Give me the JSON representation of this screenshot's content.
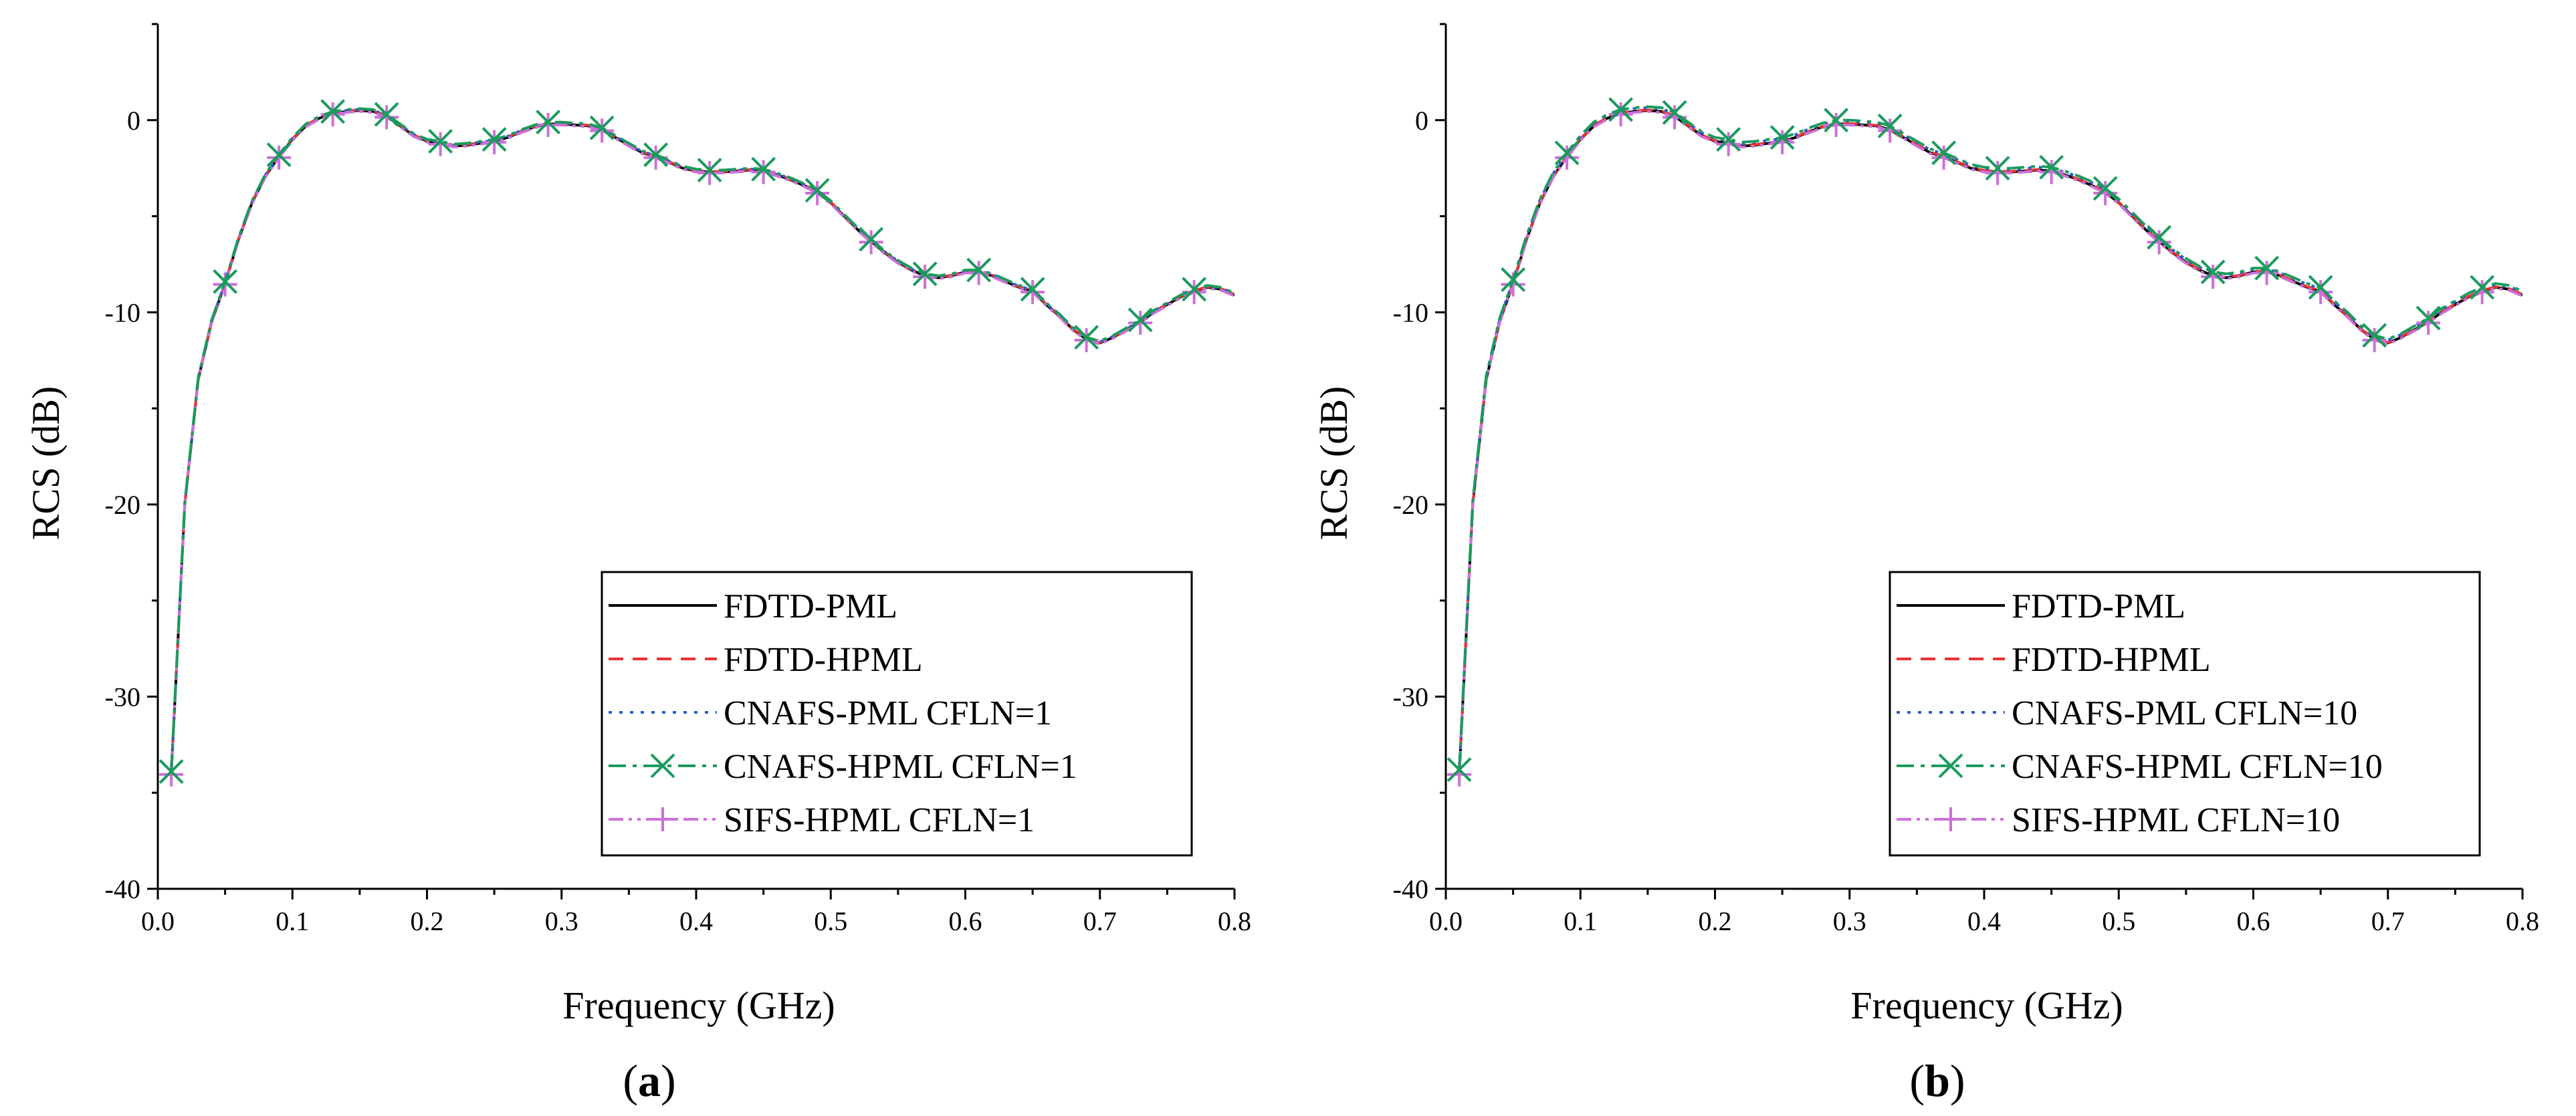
{
  "chart_data": [
    {
      "panel_label": "a",
      "type": "line",
      "xlabel": "Frequency (GHz)",
      "ylabel": "RCS (dB)",
      "xlim": [
        0.0,
        0.8
      ],
      "ylim": [
        -40,
        5
      ],
      "xticks": [
        "0.0",
        "0.1",
        "0.2",
        "0.3",
        "0.4",
        "0.5",
        "0.6",
        "0.7",
        "0.8"
      ],
      "yticks": [
        "0",
        "-10",
        "-20",
        "-30",
        "-40"
      ],
      "legend_position": "bottom-right",
      "series": [
        {
          "name": "FDTD-PML",
          "color": "#000000",
          "dash": "solid",
          "marker": "none",
          "offset": 0,
          "x": [
            0.01,
            0.02,
            0.03,
            0.04,
            0.05,
            0.06,
            0.07,
            0.08,
            0.09,
            0.1,
            0.11,
            0.12,
            0.13,
            0.14,
            0.15,
            0.16,
            0.17,
            0.18,
            0.19,
            0.2,
            0.21,
            0.22,
            0.23,
            0.24,
            0.25,
            0.26,
            0.27,
            0.28,
            0.29,
            0.3,
            0.31,
            0.32,
            0.33,
            0.34,
            0.35,
            0.36,
            0.37,
            0.38,
            0.39,
            0.4,
            0.41,
            0.42,
            0.43,
            0.44,
            0.45,
            0.46,
            0.47,
            0.48,
            0.49,
            0.5,
            0.51,
            0.52,
            0.53,
            0.54,
            0.55,
            0.56,
            0.57,
            0.58,
            0.59,
            0.6,
            0.61,
            0.62,
            0.63,
            0.64,
            0.65,
            0.66,
            0.67,
            0.68,
            0.69,
            0.7,
            0.71,
            0.72,
            0.73,
            0.74,
            0.75,
            0.76,
            0.77,
            0.78,
            0.79,
            0.8
          ],
          "y": [
            -34.0,
            -20.0,
            -13.5,
            -10.5,
            -8.5,
            -6.2,
            -4.3,
            -2.9,
            -1.9,
            -1.0,
            -0.3,
            0.1,
            0.35,
            0.45,
            0.5,
            0.45,
            0.2,
            -0.3,
            -0.8,
            -1.1,
            -1.2,
            -1.35,
            -1.3,
            -1.2,
            -1.1,
            -0.9,
            -0.6,
            -0.35,
            -0.2,
            -0.2,
            -0.25,
            -0.3,
            -0.5,
            -0.9,
            -1.3,
            -1.7,
            -1.9,
            -2.2,
            -2.5,
            -2.65,
            -2.7,
            -2.7,
            -2.65,
            -2.6,
            -2.65,
            -2.85,
            -3.1,
            -3.4,
            -3.75,
            -4.3,
            -5.0,
            -5.7,
            -6.3,
            -6.9,
            -7.4,
            -7.8,
            -8.1,
            -8.2,
            -8.1,
            -7.9,
            -7.9,
            -8.1,
            -8.4,
            -8.7,
            -8.9,
            -9.6,
            -10.2,
            -10.9,
            -11.4,
            -11.6,
            -11.3,
            -10.9,
            -10.5,
            -10.0,
            -9.6,
            -9.2,
            -8.9,
            -8.7,
            -8.8,
            -9.1
          ]
        },
        {
          "name": "FDTD-HPML",
          "color": "#e8312f",
          "dash": "dashed",
          "marker": "none",
          "offset": 0.03
        },
        {
          "name": "CNAFS-PML CFLN=1",
          "color": "#2a5fc7",
          "dash": "dotted",
          "marker": "none",
          "offset": 0.06
        },
        {
          "name": "CNAFS-HPML CFLN=1",
          "color": "#1a9b5c",
          "dash": "dashdot",
          "marker": "x",
          "offset": 0.1
        },
        {
          "name": "SIFS-HPML CFLN=1",
          "color": "#cc6fd9",
          "dash": "dashdotdot",
          "marker": "plus",
          "offset": -0.05
        }
      ]
    },
    {
      "panel_label": "b",
      "type": "line",
      "xlabel": "Frequency (GHz)",
      "ylabel": "RCS (dB)",
      "xlim": [
        0.0,
        0.8
      ],
      "ylim": [
        -40,
        5
      ],
      "xticks": [
        "0.0",
        "0.1",
        "0.2",
        "0.3",
        "0.4",
        "0.5",
        "0.6",
        "0.7",
        "0.8"
      ],
      "yticks": [
        "0",
        "-10",
        "-20",
        "-30",
        "-40"
      ],
      "legend_position": "bottom-right",
      "series": [
        {
          "name": "FDTD-PML",
          "color": "#000000",
          "dash": "solid",
          "marker": "none",
          "offset": 0
        },
        {
          "name": "FDTD-HPML",
          "color": "#e8312f",
          "dash": "dashed",
          "marker": "none",
          "offset": 0.03
        },
        {
          "name": "CNAFS-PML CFLN=10",
          "color": "#2a5fc7",
          "dash": "dotted",
          "marker": "none",
          "offset": 0.15
        },
        {
          "name": "CNAFS-HPML CFLN=10",
          "color": "#1a9b5c",
          "dash": "dashdot",
          "marker": "x",
          "offset": 0.2
        },
        {
          "name": "SIFS-HPML CFLN=10",
          "color": "#cc6fd9",
          "dash": "dashdotdot",
          "marker": "plus",
          "offset": -0.05
        }
      ]
    }
  ]
}
